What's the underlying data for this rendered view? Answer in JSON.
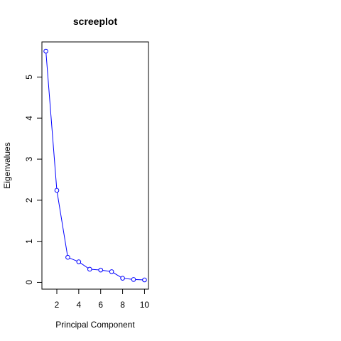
{
  "chart_data": {
    "type": "line",
    "title": "screeplot",
    "xlabel": "Principal Component",
    "ylabel": "Eigenvalues",
    "x": [
      1,
      2,
      3,
      4,
      5,
      6,
      7,
      8,
      9,
      10
    ],
    "series": [
      {
        "values": [
          5.63,
          2.24,
          0.61,
          0.5,
          0.32,
          0.3,
          0.26,
          0.1,
          0.07,
          0.06
        ],
        "color": "#0000ff",
        "markers": "open-circle"
      }
    ],
    "xlim": [
      0.64,
      10.36
    ],
    "ylim": [
      -0.165,
      5.855
    ],
    "xticks": [
      2,
      4,
      6,
      8,
      10
    ],
    "yticks": [
      0,
      1,
      2,
      3,
      4,
      5
    ],
    "grid": false,
    "legend": "none"
  }
}
